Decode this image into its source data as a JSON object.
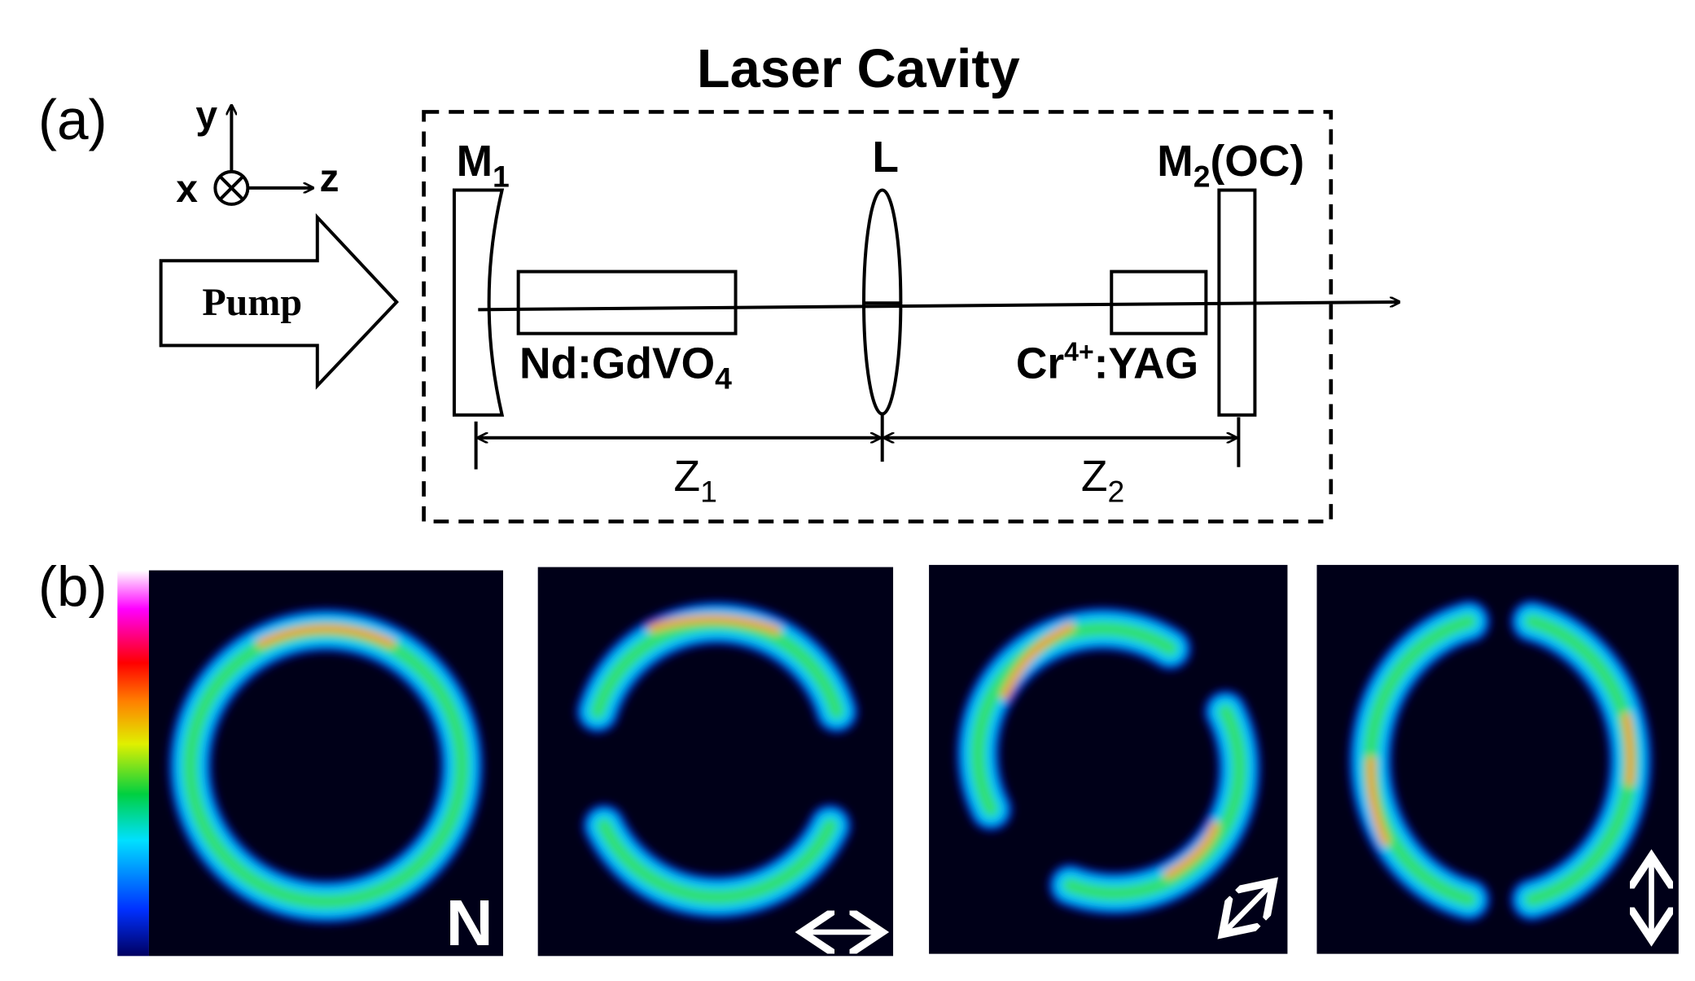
{
  "panel_a": {
    "label": "(a)",
    "title": "Laser Cavity",
    "axes": {
      "y": "y",
      "x": "x",
      "z": "z"
    },
    "pump": "Pump",
    "mirror_1": {
      "text": "M",
      "sub": "1"
    },
    "lens": "L",
    "mirror_2": {
      "text": "M",
      "sub": "2",
      "suffix": "(OC)"
    },
    "gain_crystal": {
      "text": "Nd:GdVO",
      "sub": "4"
    },
    "absorber": {
      "text": "Cr",
      "sup": "4+",
      "suffix": ":YAG"
    },
    "distance_1": {
      "text": "Z",
      "sub": "1"
    },
    "distance_2": {
      "text": "Z",
      "sub": "2"
    }
  },
  "panel_b": {
    "label": "(b)",
    "marker": "N"
  }
}
